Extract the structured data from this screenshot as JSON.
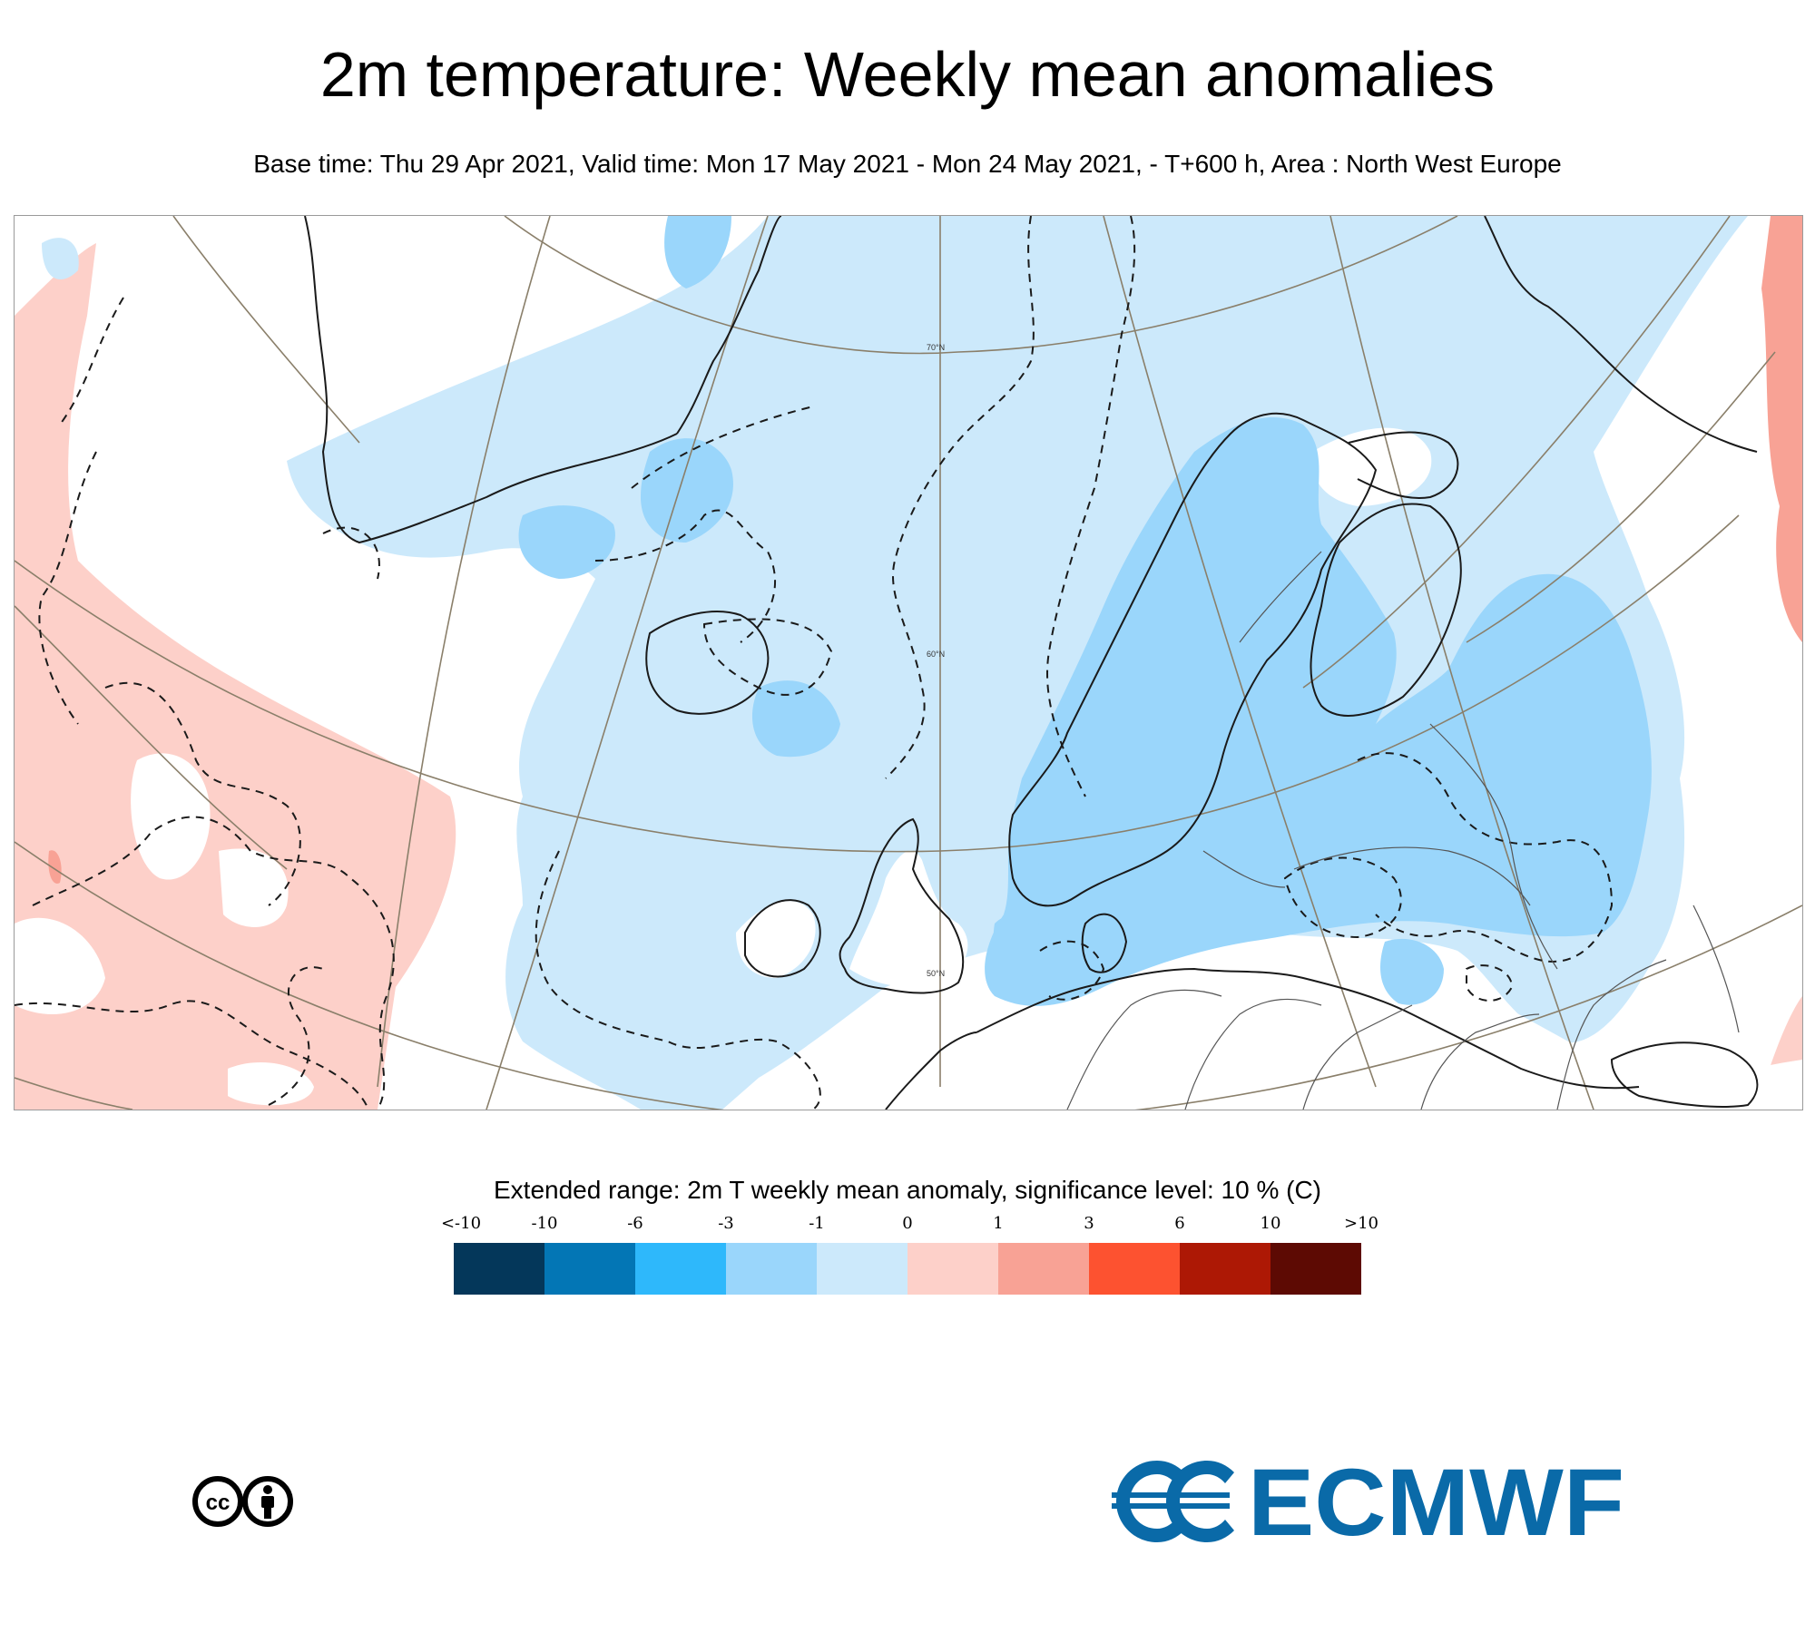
{
  "header": {
    "title": "2m temperature: Weekly mean anomalies",
    "subtitle": "Base time: Thu 29 Apr 2021, Valid time: Mon 17 May 2021 - Mon 24 May 2021, - T+600 h, Area : North West Europe"
  },
  "map": {
    "latitude_labels": [
      "70°N",
      "60°N",
      "50°N"
    ],
    "colors": {
      "ocean_and_land_default": "#ffffff",
      "cold_light": "#cce9fb",
      "cold_medium": "#9ad6fb",
      "warm_light": "#fdd0c9",
      "warm_medium": "#f8a295",
      "coast": "#1a1a1a",
      "graticule": "#8a7f6a"
    }
  },
  "legend": {
    "title": "Extended range: 2m T weekly mean anomaly, significance level: 10 % (C)",
    "ticks": [
      "<-10",
      "-10",
      "-6",
      "-3",
      "-1",
      "0",
      "1",
      "3",
      "6",
      "10",
      ">10"
    ],
    "colors": [
      "#04375a",
      "#0376b5",
      "#2eb8fb",
      "#9ad6fb",
      "#cce9fb",
      "#fdd0c9",
      "#f8a295",
      "#fd5230",
      "#ad1805",
      "#5d0a03"
    ]
  },
  "footer": {
    "license_icon": "creative-commons-by-icon",
    "brand_icon": "ecmwf-logo",
    "brand_text": "ECMWF"
  }
}
